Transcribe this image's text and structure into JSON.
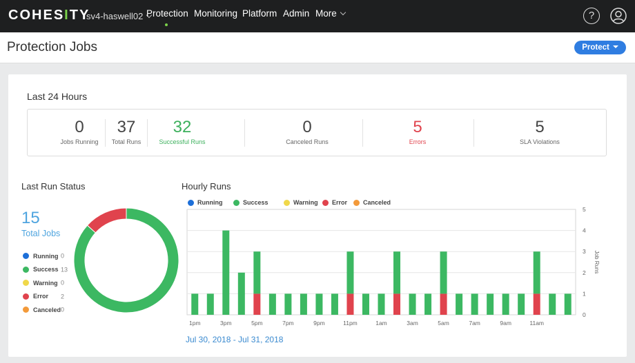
{
  "header": {
    "logo": "COHESITY",
    "cluster": "sv4-haswell02",
    "nav": [
      {
        "label": "Protection",
        "active": true
      },
      {
        "label": "Monitoring",
        "active": false
      },
      {
        "label": "Platform",
        "active": false
      },
      {
        "label": "Admin",
        "active": false
      },
      {
        "label": "More",
        "active": false
      }
    ],
    "help_label": "?",
    "help_icon": "help-icon",
    "user_icon": "user-icon"
  },
  "page": {
    "title": "Protection Jobs",
    "protect_button": "Protect"
  },
  "last24": {
    "title": "Last 24 Hours",
    "stats": [
      {
        "value": "0",
        "label": "Jobs Running",
        "color": "#444444"
      },
      {
        "value": "37",
        "label": "Total Runs",
        "color": "#444444"
      },
      {
        "value": "32",
        "label": "Successful Runs",
        "color": "#3cb05c"
      },
      {
        "value": "0",
        "label": "Canceled Runs",
        "color": "#444444"
      },
      {
        "value": "5",
        "label": "Errors",
        "color": "#e0434d"
      },
      {
        "value": "5",
        "label": "SLA Violations",
        "color": "#444444"
      }
    ]
  },
  "last_run": {
    "title": "Last Run Status",
    "total": "15",
    "total_label": "Total Jobs",
    "legend": [
      {
        "name": "Running",
        "count": "0",
        "color": "#1d6fd8"
      },
      {
        "name": "Success",
        "count": "13",
        "color": "#3cb862"
      },
      {
        "name": "Warning",
        "count": "0",
        "color": "#f0d84a"
      },
      {
        "name": "Error",
        "count": "2",
        "color": "#e0434d"
      },
      {
        "name": "Canceled",
        "count": "0",
        "color": "#f39a3a"
      }
    ]
  },
  "hourly": {
    "title": "Hourly Runs",
    "date_range": "Jul 30, 2018 - Jul 31, 2018",
    "legend": [
      {
        "name": "Running",
        "color": "#1d6fd8"
      },
      {
        "name": "Success",
        "color": "#3cb862"
      },
      {
        "name": "Warning",
        "color": "#f0d84a"
      },
      {
        "name": "Error",
        "color": "#e0434d"
      },
      {
        "name": "Canceled",
        "color": "#f39a3a"
      }
    ]
  },
  "chart_data": [
    {
      "type": "pie",
      "title": "Last Run Status",
      "donut": true,
      "slices": [
        {
          "name": "Running",
          "value": 0,
          "color": "#1d6fd8"
        },
        {
          "name": "Success",
          "value": 13,
          "color": "#3cb862"
        },
        {
          "name": "Warning",
          "value": 0,
          "color": "#f0d84a"
        },
        {
          "name": "Error",
          "value": 2,
          "color": "#e0434d"
        },
        {
          "name": "Canceled",
          "value": 0,
          "color": "#f39a3a"
        }
      ]
    },
    {
      "type": "bar",
      "stacked": true,
      "title": "Hourly Runs",
      "ylabel": "Job Runs",
      "ylim": [
        0,
        5
      ],
      "yticks": [
        0,
        1,
        2,
        3,
        4,
        5
      ],
      "y_axis_side": "right",
      "grid": true,
      "x_tick_labels": [
        "1pm",
        "3pm",
        "5pm",
        "7pm",
        "9pm",
        "11pm",
        "1am",
        "3am",
        "5am",
        "7am",
        "9am",
        "11am"
      ],
      "bars_per_tick": 2,
      "series": [
        {
          "name": "Running",
          "color": "#1d6fd8",
          "values": [
            0,
            0,
            0,
            0,
            0,
            0,
            0,
            0,
            0,
            0,
            0,
            0,
            0,
            0,
            0,
            0,
            0,
            0,
            0,
            0,
            0,
            0,
            0,
            0,
            0
          ]
        },
        {
          "name": "Success",
          "color": "#3cb862",
          "values": [
            1,
            1,
            4,
            2,
            2,
            1,
            1,
            1,
            1,
            1,
            2,
            1,
            1,
            2,
            1,
            1,
            2,
            1,
            1,
            1,
            1,
            1,
            2,
            1,
            1
          ]
        },
        {
          "name": "Warning",
          "color": "#f0d84a",
          "values": [
            0,
            0,
            0,
            0,
            0,
            0,
            0,
            0,
            0,
            0,
            0,
            0,
            0,
            0,
            0,
            0,
            0,
            0,
            0,
            0,
            0,
            0,
            0,
            0,
            0
          ]
        },
        {
          "name": "Error",
          "color": "#e0434d",
          "values": [
            0,
            0,
            0,
            0,
            1,
            0,
            0,
            0,
            0,
            0,
            1,
            0,
            0,
            1,
            0,
            0,
            1,
            0,
            0,
            0,
            0,
            0,
            1,
            0,
            0
          ]
        },
        {
          "name": "Canceled",
          "color": "#f39a3a",
          "values": [
            0,
            0,
            0,
            0,
            0,
            0,
            0,
            0,
            0,
            0,
            0,
            0,
            0,
            0,
            0,
            0,
            0,
            0,
            0,
            0,
            0,
            0,
            0,
            0,
            0
          ]
        }
      ]
    }
  ]
}
